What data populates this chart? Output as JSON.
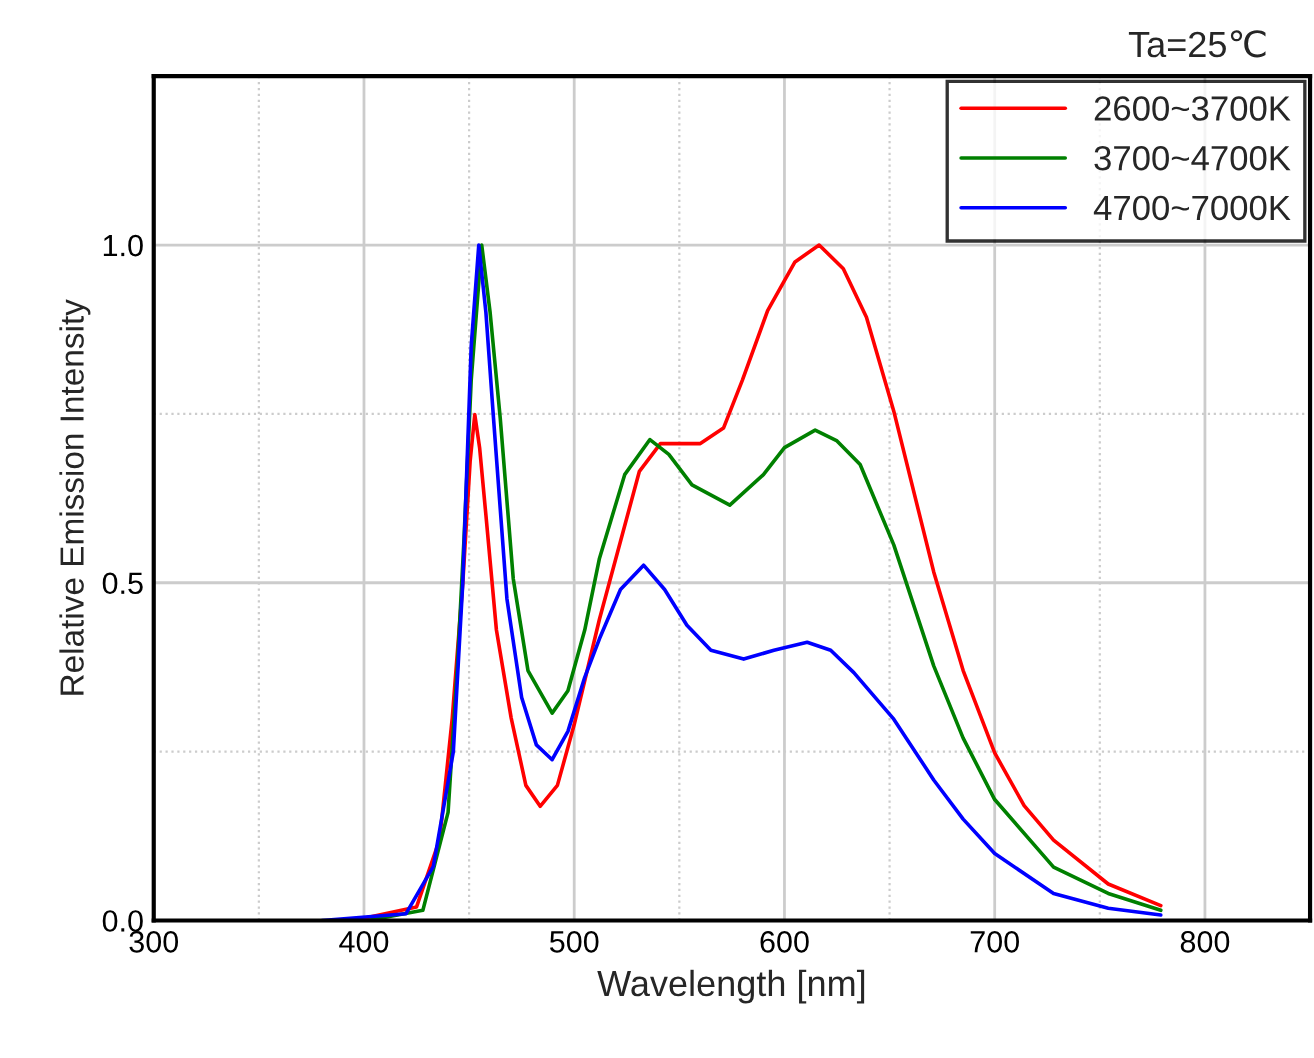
{
  "chart_data": {
    "type": "line",
    "xlabel": "Wavelength [nm]",
    "ylabel": "Relative Emission Intensity",
    "annotations": [
      "Ta=25℃"
    ],
    "xlim": [
      300,
      850
    ],
    "ylim": [
      0,
      1.25
    ],
    "xticks": [
      300,
      {
        "value": 350,
        "label": null
      },
      400,
      {
        "value": 450,
        "label": null
      },
      500,
      {
        "value": 550,
        "label": null
      },
      600,
      {
        "value": 650,
        "label": null
      },
      700,
      {
        "value": 750,
        "label": null
      },
      800
    ],
    "yticks": [
      {
        "value": 0,
        "label": "0.0"
      },
      {
        "value": 0.25,
        "label": null
      },
      {
        "value": 0.5,
        "label": "0.5"
      },
      {
        "value": 0.75,
        "label": null
      },
      {
        "value": 1.0,
        "label": "1.0"
      }
    ],
    "grid": true,
    "legend": "top right",
    "line_style": "solid",
    "marker": "none",
    "series": [
      {
        "name": "2600~3700K",
        "color": "#ff0000",
        "x": [
          395,
          425,
          436,
          442,
          447,
          450.5,
          452.7,
          455,
          458,
          463,
          470,
          477,
          483.8,
          492,
          500,
          512,
          531,
          541,
          560,
          571,
          580,
          592,
          605,
          616.5,
          628,
          639,
          652,
          671,
          685,
          700,
          714,
          728,
          754,
          779
        ],
        "values": [
          0,
          0.02,
          0.12,
          0.3,
          0.5,
          0.68,
          0.749,
          0.7,
          0.6,
          0.43,
          0.3,
          0.2,
          0.169,
          0.2,
          0.29,
          0.446,
          0.665,
          0.706,
          0.706,
          0.729,
          0.8,
          0.903,
          0.975,
          1.0,
          0.965,
          0.893,
          0.754,
          0.516,
          0.37,
          0.248,
          0.17,
          0.119,
          0.054,
          0.022
        ]
      },
      {
        "name": "3700~4700K",
        "color": "#008000",
        "x": [
          402,
          428,
          440,
          444.5,
          447.5,
          451,
          456,
          460,
          464.8,
          471,
          478,
          489.5,
          497,
          505,
          512,
          524,
          536,
          545,
          556,
          574,
          590,
          600,
          614.6,
          625,
          636,
          652,
          671,
          685,
          700,
          728,
          754,
          779
        ],
        "values": [
          0,
          0.015,
          0.16,
          0.38,
          0.56,
          0.8,
          1.0,
          0.9,
          0.744,
          0.506,
          0.37,
          0.307,
          0.34,
          0.43,
          0.536,
          0.66,
          0.712,
          0.69,
          0.645,
          0.615,
          0.66,
          0.7,
          0.726,
          0.71,
          0.675,
          0.556,
          0.377,
          0.27,
          0.179,
          0.079,
          0.04,
          0.015
        ]
      },
      {
        "name": "4700~7000K",
        "color": "#0000ff",
        "x": [
          380,
          420,
          433,
          442.5,
          447,
          451,
          454.6,
          458,
          461.6,
          468,
          475,
          482,
          489.5,
          497,
          505,
          512,
          522,
          533,
          543,
          553.6,
          565,
          580.6,
          595,
          610.8,
          622,
          633,
          652,
          671,
          685,
          700,
          728,
          754,
          779
        ],
        "values": [
          0,
          0.01,
          0.08,
          0.25,
          0.5,
          0.85,
          1.0,
          0.9,
          0.744,
          0.476,
          0.33,
          0.26,
          0.238,
          0.28,
          0.36,
          0.417,
          0.49,
          0.526,
          0.49,
          0.437,
          0.4,
          0.387,
          0.4,
          0.412,
          0.4,
          0.367,
          0.298,
          0.208,
          0.15,
          0.099,
          0.04,
          0.018,
          0.008
        ]
      }
    ]
  }
}
